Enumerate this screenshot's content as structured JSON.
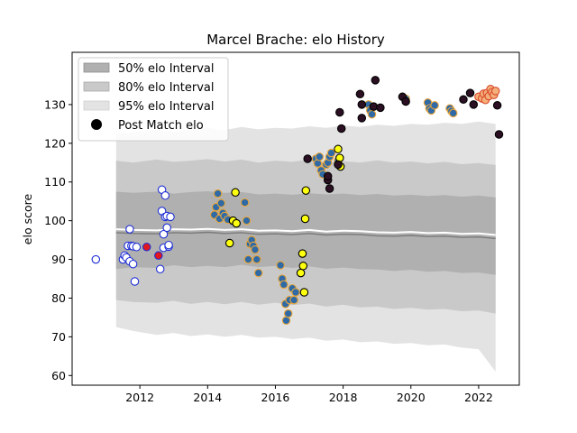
{
  "chart_data": {
    "type": "scatter",
    "title": "Marcel Brache: elo History",
    "xlabel": "",
    "ylabel": "elo score",
    "xlim": [
      2010.0,
      2023.2
    ],
    "ylim": [
      57.5,
      143.5
    ],
    "xticks": [
      2012,
      2014,
      2016,
      2018,
      2020,
      2022
    ],
    "xtick_labels": [
      "2012",
      "2014",
      "2016",
      "2018",
      "2020",
      "2022"
    ],
    "yticks": [
      60,
      70,
      80,
      90,
      100,
      110,
      120,
      130
    ],
    "ytick_labels": [
      "60",
      "70",
      "80",
      "90",
      "100",
      "110",
      "120",
      "130"
    ],
    "legend": {
      "position": "top-left",
      "entries": [
        "50% elo Interval",
        "80% elo Interval",
        "95% elo Interval",
        "Post Match elo"
      ]
    },
    "bands": {
      "x": [
        2011.3,
        2011.8,
        2012.5,
        2013.0,
        2013.5,
        2014.0,
        2014.5,
        2015.0,
        2015.5,
        2016.0,
        2016.5,
        2017.0,
        2017.5,
        2018.0,
        2018.5,
        2019.0,
        2019.5,
        2020.0,
        2020.5,
        2021.0,
        2021.5,
        2022.0,
        2022.5
      ],
      "median": [
        97.8,
        97.6,
        97.5,
        97.8,
        97.7,
        97.9,
        97.6,
        97.8,
        97.4,
        97.5,
        97.3,
        97.6,
        97.2,
        97.4,
        97.3,
        97.0,
        96.9,
        97.1,
        96.8,
        96.9,
        96.6,
        96.7,
        96.3
      ],
      "p50": [
        [
          87.5,
          107.5
        ],
        [
          88.0,
          107.2
        ],
        [
          87.8,
          107.5
        ],
        [
          88.5,
          107.0
        ],
        [
          88.0,
          107.4
        ],
        [
          88.3,
          107.6
        ],
        [
          88.0,
          107.2
        ],
        [
          88.6,
          107.4
        ],
        [
          88.0,
          106.8
        ],
        [
          88.3,
          107.0
        ],
        [
          87.8,
          106.7
        ],
        [
          88.2,
          107.1
        ],
        [
          87.6,
          106.8
        ],
        [
          87.9,
          107.0
        ],
        [
          87.5,
          106.6
        ],
        [
          87.4,
          106.9
        ],
        [
          87.0,
          106.5
        ],
        [
          87.3,
          106.7
        ],
        [
          86.8,
          106.4
        ],
        [
          87.0,
          106.6
        ],
        [
          86.5,
          106.2
        ],
        [
          86.6,
          106.5
        ],
        [
          86.0,
          106.0
        ]
      ],
      "p80": [
        [
          79.5,
          115.5
        ],
        [
          79.0,
          115.0
        ],
        [
          78.8,
          115.8
        ],
        [
          79.3,
          115.2
        ],
        [
          78.5,
          115.5
        ],
        [
          79.0,
          115.9
        ],
        [
          78.4,
          115.3
        ],
        [
          79.0,
          115.8
        ],
        [
          78.3,
          115.0
        ],
        [
          78.8,
          115.5
        ],
        [
          78.2,
          115.2
        ],
        [
          78.6,
          115.8
        ],
        [
          77.8,
          115.0
        ],
        [
          78.3,
          115.4
        ],
        [
          77.6,
          115.0
        ],
        [
          77.8,
          115.6
        ],
        [
          77.2,
          115.0
        ],
        [
          77.5,
          115.3
        ],
        [
          77.0,
          114.8
        ],
        [
          77.2,
          115.2
        ],
        [
          76.6,
          114.6
        ],
        [
          76.8,
          114.9
        ],
        [
          76.0,
          114.4
        ]
      ],
      "p95": [
        [
          72.5,
          122.5
        ],
        [
          71.5,
          122.8
        ],
        [
          70.5,
          123.5
        ],
        [
          71.0,
          123.0
        ],
        [
          70.2,
          123.6
        ],
        [
          70.6,
          124.0
        ],
        [
          70.0,
          123.4
        ],
        [
          70.5,
          124.2
        ],
        [
          69.8,
          123.6
        ],
        [
          70.0,
          124.0
        ],
        [
          69.4,
          123.8
        ],
        [
          69.8,
          124.4
        ],
        [
          69.0,
          124.0
        ],
        [
          69.3,
          124.6
        ],
        [
          68.6,
          124.2
        ],
        [
          68.8,
          124.8
        ],
        [
          68.2,
          124.5
        ],
        [
          68.4,
          125.0
        ],
        [
          67.8,
          124.8
        ],
        [
          68.0,
          125.3
        ],
        [
          67.2,
          125.0
        ],
        [
          66.8,
          125.6
        ],
        [
          61.0,
          125.0
        ]
      ]
    },
    "series": [
      {
        "name": "white / blue edge",
        "fill": "#ffffff",
        "edge": "#1f2fd6",
        "points": [
          [
            2010.7,
            90.0
          ],
          [
            2011.5,
            90.0
          ],
          [
            2011.55,
            91.0
          ],
          [
            2011.6,
            90.5
          ],
          [
            2011.65,
            93.5
          ],
          [
            2011.7,
            97.8
          ],
          [
            2011.7,
            89.5
          ],
          [
            2011.75,
            93.5
          ],
          [
            2011.8,
            88.8
          ],
          [
            2011.8,
            93.4
          ],
          [
            2011.85,
            84.3
          ],
          [
            2011.9,
            93.2
          ],
          [
            2012.6,
            87.5
          ],
          [
            2012.65,
            102.5
          ],
          [
            2012.65,
            108.0
          ],
          [
            2012.7,
            93.0
          ],
          [
            2012.7,
            96.5
          ],
          [
            2012.75,
            106.5
          ],
          [
            2012.75,
            101.0
          ],
          [
            2012.8,
            101.2
          ],
          [
            2012.8,
            98.2
          ],
          [
            2012.85,
            93.3
          ],
          [
            2012.85,
            93.7
          ],
          [
            2012.9,
            101.0
          ]
        ]
      },
      {
        "name": "red / blue edge",
        "fill": "#e0151d",
        "edge": "#1f2fd6",
        "points": [
          [
            2012.2,
            93.2
          ],
          [
            2012.55,
            91.0
          ]
        ]
      },
      {
        "name": "blue / orange edge",
        "fill": "#2f6aa6",
        "edge": "#e8a53a",
        "points": [
          [
            2014.2,
            101.5
          ],
          [
            2014.25,
            103.5
          ],
          [
            2014.3,
            107.0
          ],
          [
            2014.35,
            100.5
          ],
          [
            2014.4,
            104.5
          ],
          [
            2014.45,
            102.0
          ],
          [
            2014.5,
            101.2
          ],
          [
            2014.6,
            100.3
          ],
          [
            2015.1,
            104.7
          ],
          [
            2015.15,
            100.0
          ],
          [
            2015.2,
            90.0
          ],
          [
            2015.25,
            94.0
          ],
          [
            2015.3,
            95.0
          ],
          [
            2015.35,
            93.5
          ],
          [
            2015.4,
            92.5
          ],
          [
            2015.45,
            90.0
          ],
          [
            2015.5,
            86.5
          ],
          [
            2016.15,
            88.5
          ],
          [
            2016.2,
            85.0
          ],
          [
            2016.25,
            83.5
          ],
          [
            2016.3,
            78.5
          ],
          [
            2016.32,
            74.2
          ],
          [
            2016.38,
            76.0
          ],
          [
            2016.42,
            79.5
          ],
          [
            2016.5,
            82.5
          ],
          [
            2016.55,
            79.5
          ],
          [
            2016.6,
            81.5
          ],
          [
            2017.2,
            116.0
          ],
          [
            2017.25,
            114.8
          ],
          [
            2017.3,
            116.5
          ],
          [
            2017.35,
            113.0
          ],
          [
            2017.4,
            112.0
          ],
          [
            2017.5,
            114.5
          ],
          [
            2017.55,
            115.0
          ],
          [
            2017.6,
            116.5
          ],
          [
            2017.65,
            117.5
          ],
          [
            2017.85,
            115.5
          ],
          [
            2018.75,
            130.0
          ],
          [
            2018.8,
            128.5
          ],
          [
            2018.85,
            127.5
          ],
          [
            2018.9,
            129.5
          ],
          [
            2019.85,
            131.5
          ],
          [
            2020.5,
            130.5
          ],
          [
            2020.55,
            129.0
          ],
          [
            2020.6,
            128.5
          ],
          [
            2020.7,
            129.8
          ],
          [
            2021.15,
            129.0
          ],
          [
            2021.2,
            128.3
          ],
          [
            2021.25,
            127.8
          ]
        ]
      },
      {
        "name": "yellow / black edge",
        "fill": "#ffff10",
        "edge": "#000000",
        "points": [
          [
            2014.65,
            94.2
          ],
          [
            2014.75,
            100.0
          ],
          [
            2014.82,
            107.3
          ],
          [
            2014.85,
            99.3
          ],
          [
            2016.75,
            86.5
          ],
          [
            2016.8,
            91.5
          ],
          [
            2016.82,
            88.3
          ],
          [
            2016.85,
            81.5
          ],
          [
            2016.88,
            100.5
          ],
          [
            2016.9,
            107.8
          ],
          [
            2017.85,
            118.5
          ],
          [
            2017.9,
            116.2
          ],
          [
            2017.92,
            114.0
          ]
        ]
      },
      {
        "name": "dark / black edge",
        "fill": "#2b0f22",
        "edge": "#000000",
        "points": [
          [
            2016.95,
            116.0
          ],
          [
            2017.55,
            110.5
          ],
          [
            2017.6,
            108.3
          ],
          [
            2017.55,
            111.5
          ],
          [
            2017.85,
            114.5
          ],
          [
            2017.9,
            128.0
          ],
          [
            2017.95,
            123.8
          ],
          [
            2018.5,
            132.7
          ],
          [
            2018.55,
            130.0
          ],
          [
            2018.55,
            126.5
          ],
          [
            2018.9,
            129.5
          ],
          [
            2018.95,
            136.3
          ],
          [
            2019.1,
            129.2
          ],
          [
            2019.75,
            132.0
          ],
          [
            2019.85,
            130.8
          ],
          [
            2021.55,
            131.3
          ],
          [
            2021.75,
            133.0
          ],
          [
            2021.85,
            130.0
          ],
          [
            2022.55,
            129.8
          ],
          [
            2022.6,
            122.3
          ]
        ]
      },
      {
        "name": "orange / red edge",
        "fill": "#f4b07a",
        "edge": "#d9482b",
        "points": [
          [
            2022.0,
            132.0
          ],
          [
            2022.1,
            131.6
          ],
          [
            2022.15,
            132.8
          ],
          [
            2022.2,
            131.2
          ],
          [
            2022.25,
            133.0
          ],
          [
            2022.3,
            132.2
          ],
          [
            2022.35,
            134.0
          ],
          [
            2022.4,
            133.2
          ],
          [
            2022.45,
            132.5
          ],
          [
            2022.5,
            133.5
          ]
        ]
      }
    ]
  }
}
